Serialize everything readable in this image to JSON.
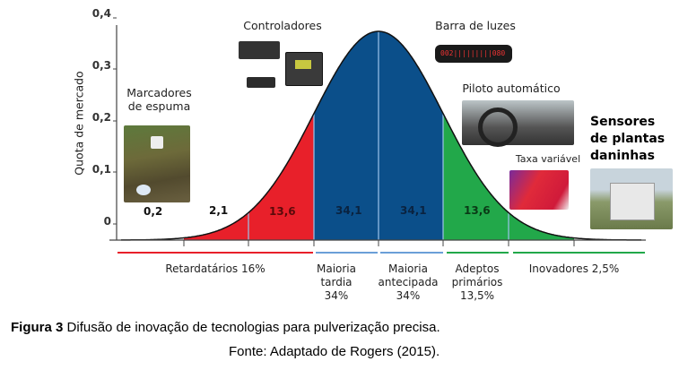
{
  "figure": {
    "y_axis_label": "Quota de mercado",
    "y_ticks": [
      "0,4",
      "0,3",
      "0,2",
      "0,1",
      "0"
    ],
    "segment_values": [
      "0,2",
      "2,1",
      "13,6",
      "34,1",
      "34,1",
      "13,6"
    ],
    "colors": {
      "red": "#e8202a",
      "blue": "#0b4f8a",
      "green": "#22a84a"
    },
    "groups": [
      {
        "label": "Retardatários 16%",
        "color": "#e8202a"
      },
      {
        "label": "Maioria\ntardia\n34%",
        "color": "#6a9fd8"
      },
      {
        "label": "Maioria\nantecipada\n34%",
        "color": "#6a9fd8"
      },
      {
        "label": "Adeptos\nprimários\n13,5%",
        "color": "#22a84a"
      },
      {
        "label": "Inovadores 2,5%",
        "color": "#22a84a"
      }
    ],
    "technologies": {
      "marcadores": "Marcadores\nde espuma",
      "controladores": "Controladores",
      "barra": "Barra de luzes",
      "barra_display": "002|||||||||080",
      "piloto": "Piloto automático",
      "taxa": "Taxa variável",
      "sensores": "Sensores\nde plantas\ndaninhas"
    }
  },
  "caption": {
    "label": "Figura 3",
    "text": " Difusão de inovação de tecnologias para pulverização precisa.",
    "source": "Fonte: Adaptado de Rogers (2015)."
  }
}
